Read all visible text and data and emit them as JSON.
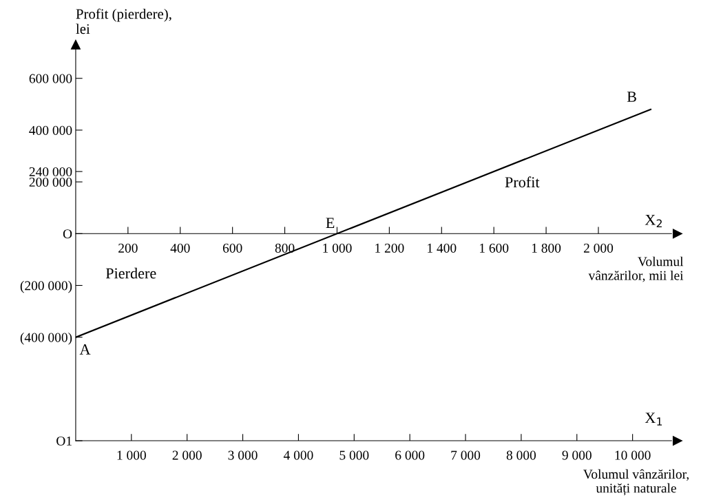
{
  "chart_data": {
    "type": "line",
    "ylabel": "Profit (pierdere),\nlei",
    "xlabel": "Volumul\nvânzărilor, mii lei",
    "x2label": "Volumul vânzărilor,\nunități naturale",
    "x": [
      0,
      2200
    ],
    "series": [
      {
        "color": "#000000",
        "values": [
          -400000,
          480000
        ]
      }
    ],
    "xlim": [
      0,
      2280
    ],
    "xticks": [
      {
        "value": 200,
        "label": "200"
      },
      {
        "value": 400,
        "label": "400"
      },
      {
        "value": 600,
        "label": "600"
      },
      {
        "value": 800,
        "label": "800"
      },
      {
        "value": 1000,
        "label": "1 000"
      },
      {
        "value": 1200,
        "label": "1 200"
      },
      {
        "value": 1400,
        "label": "1 400"
      },
      {
        "value": 1600,
        "label": "1 600"
      },
      {
        "value": 1800,
        "label": "1 800"
      },
      {
        "value": 2000,
        "label": "2 000"
      }
    ],
    "x2lim": [
      0,
      10700
    ],
    "x2ticks": [
      {
        "value": 1000,
        "label": "1 000"
      },
      {
        "value": 2000,
        "label": "2 000"
      },
      {
        "value": 3000,
        "label": "3 000"
      },
      {
        "value": 4000,
        "label": "4 000"
      },
      {
        "value": 5000,
        "label": "5 000"
      },
      {
        "value": 6000,
        "label": "6 000"
      },
      {
        "value": 7000,
        "label": "7 000"
      },
      {
        "value": 8000,
        "label": "8 000"
      },
      {
        "value": 9000,
        "label": "9 000"
      },
      {
        "value": 10000,
        "label": "10 000"
      }
    ],
    "ylim": [
      -800000,
      730000
    ],
    "yticks": [
      {
        "value": 600000,
        "label": "600 000"
      },
      {
        "value": 400000,
        "label": "400 000"
      },
      {
        "value": 240000,
        "label": "240 000"
      },
      {
        "value": 200000,
        "label": "200 000"
      },
      {
        "value": 0,
        "label": "O"
      },
      {
        "value": -200000,
        "label": "(200 000)"
      },
      {
        "value": -400000,
        "label": "(400 000)"
      },
      {
        "value": -800000,
        "label": "O1"
      }
    ],
    "annotations": [
      {
        "text": "A",
        "x": 0,
        "y": -400000
      },
      {
        "text": "B",
        "x": 2200,
        "y": 480000
      },
      {
        "text": "E",
        "x": 1000,
        "y": 0
      },
      "Pierdere",
      "Profit",
      "X$_{2}$",
      "X$_{1}$"
    ],
    "grid": false,
    "legend": false,
    "marker": "none",
    "line_style": "solid"
  }
}
